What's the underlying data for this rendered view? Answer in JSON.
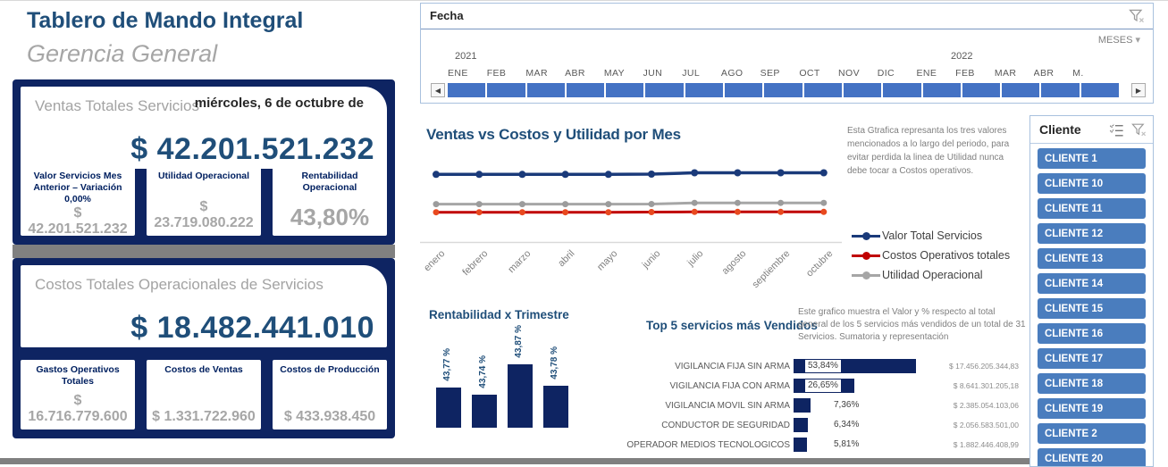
{
  "colors": {
    "navy_panel": "#0E2462",
    "accent_blue": "#1F4E79",
    "timeline_blue": "#4472C4",
    "button_blue": "#4A7DBE",
    "line_navy": "#1A3A7A",
    "line_red": "#C00000",
    "line_gray": "#A6A6A6",
    "divider_gray": "#808080"
  },
  "header": {
    "title": "Tablero de Mando Integral",
    "subtitle": "Gerencia General"
  },
  "ventas_panel": {
    "label": "Ventas Totales Servicios",
    "date": "miércoles, 6 de octubre de",
    "total": "$ 42.201.521.232",
    "cards": [
      {
        "title": "Valor Servicios Mes Anterior –  Variación 0,00%",
        "value": "$ 42.201.521.232"
      },
      {
        "title": "Utilidad Operacional",
        "value": "$ 23.719.080.222"
      },
      {
        "title": "Rentabilidad Operacional",
        "value": "43,80%"
      }
    ]
  },
  "costos_panel": {
    "label": "Costos Totales Operacionales de Servicios",
    "total": "$ 18.482.441.010",
    "cards": [
      {
        "title": "Gastos Operativos Totales",
        "value": "$ 16.716.779.600"
      },
      {
        "title": "Costos de Ventas",
        "value": "$ 1.331.722.960"
      },
      {
        "title": "Costos de Producción",
        "value": "$ 433.938.450"
      }
    ]
  },
  "fecha_slicer": {
    "title": "Fecha",
    "granularity_label": "MESES",
    "years": [
      {
        "label": "2021",
        "months": [
          "ENE",
          "FEB",
          "MAR",
          "ABR",
          "MAY",
          "JUN",
          "JUL",
          "AGO",
          "SEP",
          "OCT",
          "NOV",
          "DIC"
        ]
      },
      {
        "label": "2022",
        "months": [
          "ENE",
          "FEB",
          "MAR",
          "ABR",
          "M."
        ]
      }
    ]
  },
  "cliente_slicer": {
    "title": "Cliente",
    "items": [
      "CLIENTE 1",
      "CLIENTE 10",
      "CLIENTE 11",
      "CLIENTE 12",
      "CLIENTE 13",
      "CLIENTE 14",
      "CLIENTE 15",
      "CLIENTE 16",
      "CLIENTE 17",
      "CLIENTE 18",
      "CLIENTE 19",
      "CLIENTE 2",
      "CLIENTE 20"
    ]
  },
  "chart_data": [
    {
      "type": "line",
      "title": "Ventas vs Costos y Utilidad por Mes",
      "annotation": "Esta Gtrafica represanta los tres valores mencionados a lo largo del periodo, para evitar perdida la linea de Utilidad nunca debe tocar a Costos operativos.",
      "x": [
        "enero",
        "febrero",
        "marzo",
        "abril",
        "mayo",
        "junio",
        "julio",
        "agosto",
        "septiembre",
        "octubre"
      ],
      "series": [
        {
          "name": "Valor Total Servicios",
          "color": "#1A3A7A",
          "values_est_bn": [
            4.18,
            4.18,
            4.18,
            4.18,
            4.18,
            4.2,
            4.28,
            4.28,
            4.28,
            4.28
          ]
        },
        {
          "name": "Costos Operativos totales",
          "color": "#C00000",
          "values_est_bn": [
            1.84,
            1.84,
            1.84,
            1.84,
            1.84,
            1.85,
            1.86,
            1.86,
            1.86,
            1.86
          ]
        },
        {
          "name": "Utilidad Operacional",
          "color": "#A6A6A6",
          "values_est_bn": [
            2.34,
            2.34,
            2.34,
            2.34,
            2.34,
            2.35,
            2.42,
            2.42,
            2.42,
            2.42
          ]
        }
      ],
      "legend_position": "right",
      "y_axis_visible": false
    },
    {
      "type": "bar",
      "title": "Rentabilidad x Trimestre",
      "categories": [
        "",
        "",
        "",
        ""
      ],
      "values": [
        43.77,
        43.74,
        43.87,
        43.78
      ],
      "labels": [
        "43,77 %",
        "43,74 %",
        "43,87 %",
        "43,78 %"
      ]
    },
    {
      "type": "bar-horizontal",
      "title": "Top 5 servicios más Vendidos",
      "annotation": "Este grafico muestra el Valor y % respecto al total general de los 5 servicios más vendidos de un total de 31 Servicios. Sumatoria y representación",
      "categories": [
        "VIGILANCIA FIJA SIN ARMA",
        "VIGILANCIA FIJA CON ARMA",
        "VIGILANCIA MOVIL SIN ARMA",
        "CONDUCTOR DE SEGURIDAD",
        "OPERADOR MEDIOS TECNOLOGICOS"
      ],
      "values_pct": [
        53.84,
        26.65,
        7.36,
        6.34,
        5.81
      ],
      "pct_labels": [
        "53,84%",
        "26,65%",
        "7,36%",
        "6,34%",
        "5,81%"
      ],
      "value_labels": [
        "$ 17.456.205.344,83",
        "$ 8.641.301.205,18",
        "$ 2.385.054.103,06",
        "$ 2.056.583.501,00",
        "$ 1.882.446.408,99"
      ]
    }
  ]
}
